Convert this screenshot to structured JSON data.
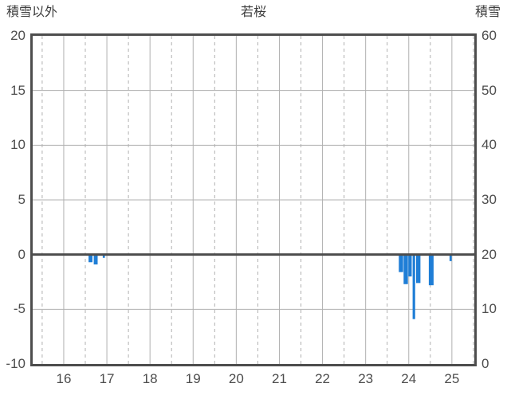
{
  "chart_data": {
    "type": "bar",
    "title": "若桜",
    "left_axis": {
      "label": "積雪以外",
      "min": -10,
      "max": 20,
      "ticks": [
        20,
        15,
        10,
        5,
        0,
        -5,
        -10
      ]
    },
    "right_axis": {
      "label": "積雪",
      "min": 0,
      "max": 60,
      "ticks": [
        60,
        50,
        40,
        30,
        20,
        10,
        0
      ]
    },
    "x_axis": {
      "min": 15.28,
      "max": 25.52,
      "ticks": [
        16,
        17,
        18,
        19,
        20,
        21,
        22,
        23,
        24,
        25
      ]
    },
    "grid": true,
    "legend": false,
    "bars": [
      {
        "x": 16.62,
        "v": -0.7,
        "w": 0.09
      },
      {
        "x": 16.74,
        "v": -0.9,
        "w": 0.09
      },
      {
        "x": 16.93,
        "v": -0.3,
        "w": 0.05
      },
      {
        "x": 23.82,
        "v": -1.6,
        "w": 0.1
      },
      {
        "x": 23.93,
        "v": -2.7,
        "w": 0.1
      },
      {
        "x": 24.03,
        "v": -2.0,
        "w": 0.08
      },
      {
        "x": 24.12,
        "v": -5.9,
        "w": 0.06
      },
      {
        "x": 24.22,
        "v": -2.6,
        "w": 0.1
      },
      {
        "x": 24.52,
        "v": -2.8,
        "w": 0.11
      },
      {
        "x": 24.97,
        "v": -0.6,
        "w": 0.05
      }
    ]
  },
  "colors": {
    "background": "#ffffff",
    "frame": "#4d4d4d",
    "grid": "#b0b0b0",
    "zero_line": "#4d4d4d",
    "text": "#4d4d4d",
    "bar": "#1f7ed6"
  }
}
